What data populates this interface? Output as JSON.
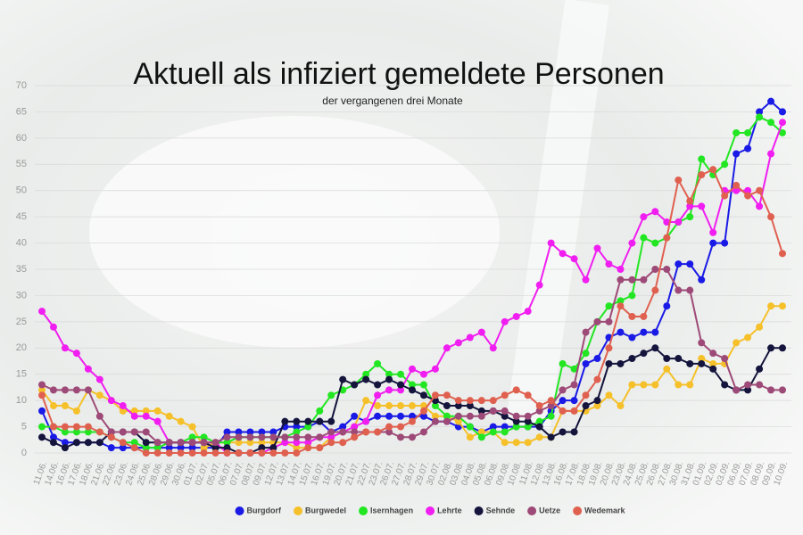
{
  "chart_data": {
    "type": "line",
    "title": "Aktuell als infiziert gemeldete Personen",
    "subtitle": "der vergangenen drei Monate",
    "categories": [
      "11.06.",
      "14.06.",
      "16.06.",
      "17.06.",
      "18.06.",
      "21.06.",
      "22.06.",
      "23.06.",
      "24.06.",
      "25.06.",
      "28.06.",
      "29.06.",
      "30.06.",
      "01.07.",
      "02.07.",
      "05.07.",
      "06.07.",
      "07.07.",
      "08.07.",
      "09.07.",
      "12.07.",
      "13.07.",
      "14.07.",
      "15.07.",
      "16.07.",
      "19.07.",
      "20.07.",
      "21.07.",
      "22.07.",
      "23.07.",
      "26.07.",
      "27.07.",
      "28.07.",
      "29.07.",
      "30.07.",
      "02.08.",
      "03.08.",
      "04.08.",
      "05.08.",
      "06.08.",
      "09.08.",
      "10.08.",
      "11.08.",
      "12.08.",
      "13.08.",
      "16.08.",
      "17.08.",
      "18.08.",
      "19.08.",
      "20.08.",
      "23.08.",
      "24.08.",
      "25.08.",
      "26.08.",
      "27.08.",
      "30.08.",
      "31.08.",
      "01.09.",
      "02.09.",
      "03.09.",
      "06.09.",
      "07.09.",
      "08.09.",
      "09.09.",
      "10.09."
    ],
    "series": [
      {
        "name": "Burgdorf",
        "color": "#1a1ae6",
        "values": [
          8,
          3,
          2,
          2,
          2,
          2,
          1,
          1,
          1,
          1,
          1,
          1,
          1,
          1,
          1,
          1,
          4,
          4,
          4,
          4,
          4,
          5,
          5,
          5,
          6,
          4,
          5,
          7,
          6,
          7,
          7,
          7,
          7,
          7,
          6,
          6,
          5,
          5,
          4,
          5,
          5,
          5,
          5,
          5,
          8,
          10,
          10,
          17,
          18,
          22,
          23,
          22,
          23,
          23,
          28,
          36,
          36,
          33,
          40,
          40,
          57,
          58,
          65,
          67,
          65
        ]
      },
      {
        "name": "Burgwedel",
        "color": "#f5c02a",
        "values": [
          12,
          9,
          9,
          8,
          12,
          11,
          10,
          8,
          8,
          8,
          8,
          7,
          6,
          5,
          1,
          2,
          2,
          2,
          2,
          2,
          2,
          2,
          1,
          1,
          1,
          3,
          4,
          5,
          10,
          9,
          9,
          9,
          9,
          9,
          7,
          7,
          6,
          3,
          4,
          4,
          2,
          2,
          2,
          3,
          3,
          8,
          8,
          8,
          9,
          11,
          9,
          13,
          13,
          13,
          16,
          13,
          13,
          18,
          17,
          17,
          21,
          22,
          24,
          28,
          28
        ]
      },
      {
        "name": "Isernhagen",
        "color": "#22e622",
        "values": [
          5,
          5,
          4,
          4,
          4,
          4,
          3,
          2,
          2,
          1,
          1,
          2,
          2,
          3,
          3,
          2,
          2,
          3,
          3,
          3,
          3,
          3,
          4,
          5,
          8,
          11,
          12,
          13,
          15,
          17,
          15,
          15,
          13,
          13,
          9,
          7,
          7,
          5,
          3,
          4,
          4,
          5,
          5,
          6,
          7,
          17,
          16,
          19,
          25,
          28,
          29,
          30,
          41,
          40,
          41,
          44,
          45,
          56,
          53,
          55,
          61,
          61,
          64,
          63,
          61
        ]
      },
      {
        "name": "Lehrte",
        "color": "#f01ef0",
        "values": [
          27,
          24,
          20,
          19,
          16,
          14,
          10,
          9,
          7,
          7,
          6,
          2,
          2,
          2,
          2,
          2,
          0,
          0,
          0,
          0,
          1,
          2,
          2,
          2,
          3,
          3,
          4,
          5,
          6,
          11,
          12,
          12,
          16,
          15,
          16,
          20,
          21,
          22,
          23,
          20,
          25,
          26,
          27,
          32,
          40,
          38,
          37,
          33,
          39,
          36,
          35,
          40,
          45,
          46,
          44,
          44,
          47,
          47,
          42,
          50,
          50,
          50,
          47,
          57,
          63
        ]
      },
      {
        "name": "Sehnde",
        "color": "#14143c",
        "values": [
          3,
          2,
          1,
          2,
          2,
          2,
          4,
          4,
          4,
          2,
          2,
          2,
          2,
          2,
          2,
          1,
          1,
          0,
          0,
          1,
          1,
          6,
          6,
          6,
          6,
          6,
          14,
          13,
          14,
          13,
          14,
          13,
          12,
          11,
          10,
          9,
          9,
          9,
          8,
          8,
          7,
          6,
          6,
          5,
          3,
          4,
          4,
          9,
          10,
          17,
          17,
          18,
          19,
          20,
          18,
          18,
          17,
          17,
          16,
          13,
          12,
          12,
          16,
          20,
          20
        ]
      },
      {
        "name": "Uetze",
        "color": "#9e4a78",
        "values": [
          13,
          12,
          12,
          12,
          12,
          7,
          4,
          4,
          4,
          4,
          2,
          2,
          2,
          2,
          2,
          2,
          3,
          3,
          3,
          3,
          3,
          3,
          3,
          3,
          3,
          4,
          4,
          4,
          4,
          4,
          4,
          3,
          3,
          4,
          6,
          6,
          7,
          7,
          7,
          8,
          8,
          7,
          7,
          8,
          9,
          12,
          13,
          23,
          25,
          25,
          33,
          33,
          33,
          35,
          35,
          31,
          31,
          21,
          19,
          18,
          12,
          13,
          13,
          12,
          12
        ]
      },
      {
        "name": "Wedemark",
        "color": "#e06050",
        "values": [
          11,
          5,
          5,
          5,
          5,
          4,
          3,
          2,
          1,
          0,
          0,
          0,
          0,
          0,
          0,
          0,
          0,
          0,
          0,
          0,
          0,
          0,
          0,
          1,
          1,
          2,
          2,
          3,
          4,
          4,
          5,
          5,
          6,
          8,
          11,
          11,
          10,
          10,
          10,
          10,
          11,
          12,
          11,
          9,
          10,
          8,
          8,
          11,
          14,
          20,
          28,
          26,
          26,
          31,
          41,
          52,
          48,
          53,
          54,
          49,
          51,
          49,
          50,
          45,
          38
        ]
      }
    ],
    "ylim": [
      0,
      70
    ],
    "yticks": [
      0,
      5,
      10,
      15,
      20,
      25,
      30,
      35,
      40,
      45,
      50,
      55,
      60,
      65,
      70
    ],
    "grid": true
  }
}
